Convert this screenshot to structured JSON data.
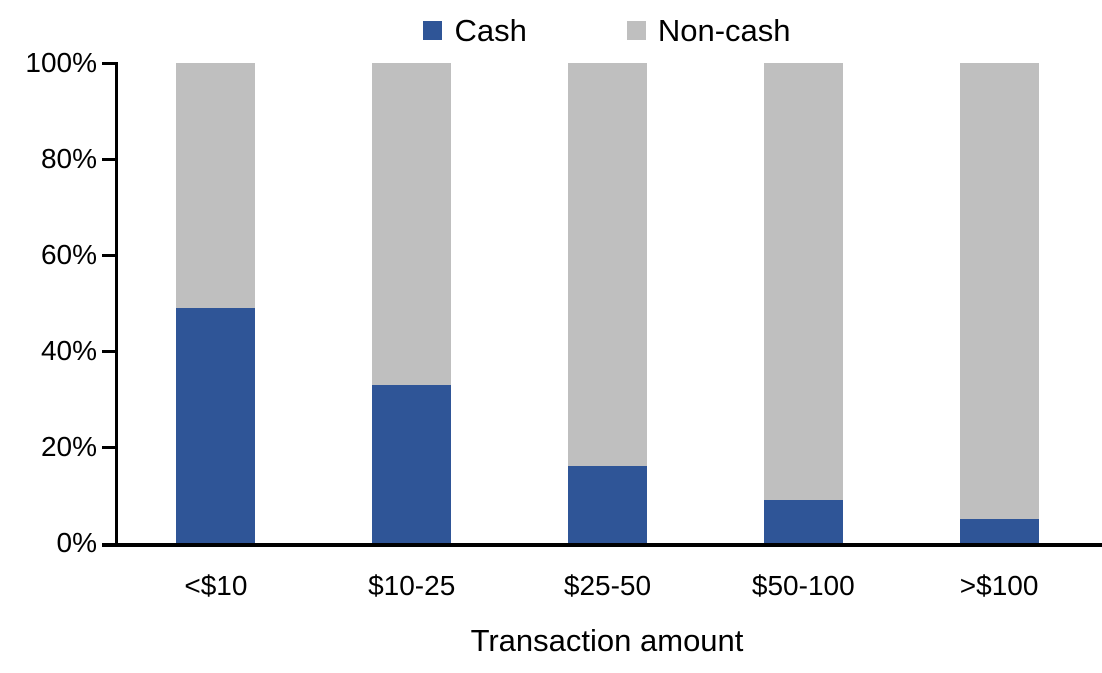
{
  "chart_data": {
    "type": "bar",
    "stacked": true,
    "percent_stacked": true,
    "title": "",
    "categories": [
      "<$10",
      "$10-25",
      "$25-50",
      "$50-100",
      ">$100"
    ],
    "series": [
      {
        "name": "Cash",
        "color": "#2F5597",
        "values": [
          49,
          33,
          16,
          9,
          5
        ]
      },
      {
        "name": "Non-cash",
        "color": "#BFBFBF",
        "values": [
          51,
          67,
          84,
          91,
          95
        ]
      }
    ],
    "xlabel": "Transaction amount",
    "ylabel": "",
    "ylim": [
      0,
      100
    ],
    "y_ticks": [
      0,
      20,
      40,
      60,
      80,
      100
    ],
    "y_tick_labels": [
      "0%",
      "20%",
      "40%",
      "60%",
      "80%",
      "100%"
    ],
    "legend_position": "top",
    "grid": false,
    "axis_color": "#000000"
  }
}
